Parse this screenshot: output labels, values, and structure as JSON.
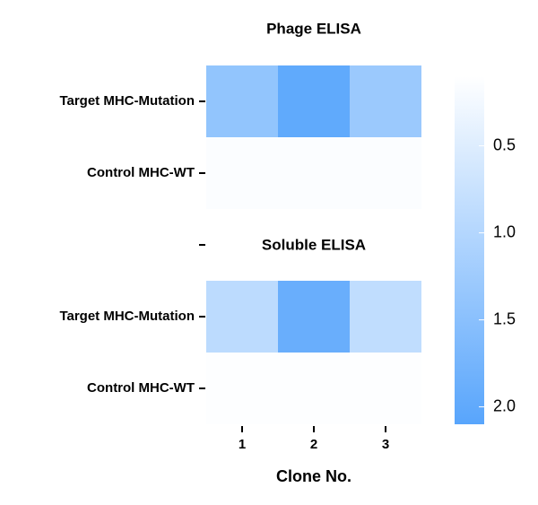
{
  "chart_data": {
    "type": "heatmap",
    "title": "Phage ELISA",
    "annotation": "Soluble ELISA",
    "x_label": "Clone No.",
    "x_categories": [
      "1",
      "2",
      "3"
    ],
    "y_categories": [
      "Target MHC-Mutation",
      "Control MHC-WT",
      null,
      "Target MHC-Mutation",
      "Control MHC-WT"
    ],
    "values": [
      [
        1.4,
        2.0,
        1.3
      ],
      [
        0.15,
        0.15,
        0.15
      ],
      [
        null,
        null,
        null
      ],
      [
        0.9,
        1.9,
        0.85
      ],
      [
        0.12,
        0.12,
        0.12
      ]
    ],
    "colormap": [
      "#ffffff",
      "#58a5fc"
    ],
    "clim": [
      0.1,
      2.1
    ],
    "cticks": [
      0.5,
      {
        "value": 1.0,
        "label": "1.0"
      },
      1.5,
      {
        "value": 2.0,
        "label": "2.0"
      }
    ]
  }
}
